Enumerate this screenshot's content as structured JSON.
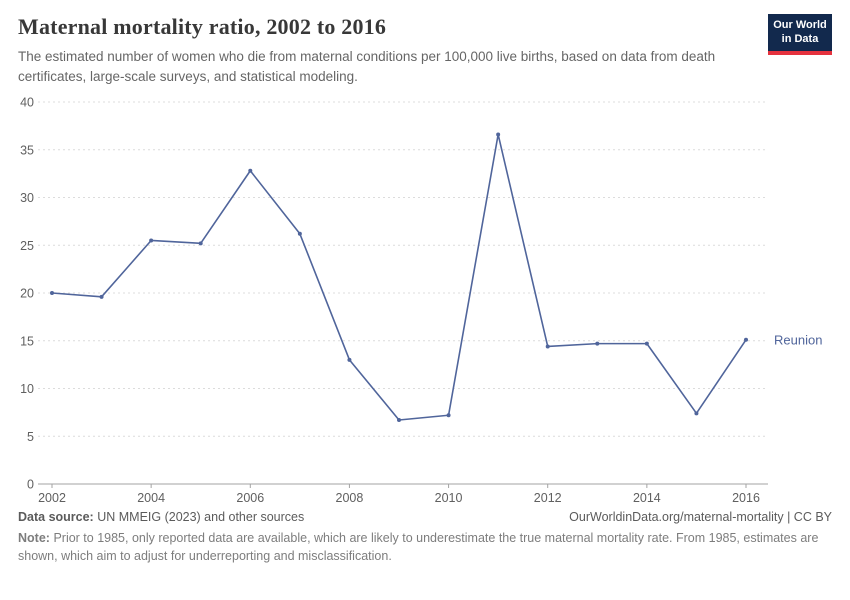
{
  "header": {
    "title": "Maternal mortality ratio, 2002 to 2016",
    "subtitle": "The estimated number of women who die from maternal conditions per 100,000 live births, based on data from death certificates, large-scale surveys, and statistical modeling.",
    "logo": {
      "line1": "Our World",
      "line2": "in Data"
    }
  },
  "colors": {
    "line_color": "#50659b",
    "logo_bg": "#12294d",
    "logo_accent": "#e5323e",
    "grid_color": "#dcdcdc",
    "axis_color": "#a3a3a3"
  },
  "chart_data": {
    "type": "line",
    "title": "Maternal mortality ratio, 2002 to 2016",
    "xlabel": "",
    "ylabel": "",
    "x": [
      2002,
      2003,
      2004,
      2005,
      2006,
      2007,
      2008,
      2009,
      2010,
      2011,
      2012,
      2013,
      2014,
      2015,
      2016
    ],
    "series": [
      {
        "name": "Reunion",
        "color": "#50659b",
        "values": [
          20.0,
          19.6,
          25.5,
          25.2,
          32.8,
          26.2,
          13.0,
          6.7,
          7.2,
          36.6,
          14.4,
          14.7,
          14.7,
          7.4,
          15.1
        ]
      }
    ],
    "ylim": [
      0,
      40
    ],
    "yticks": [
      0,
      5,
      10,
      15,
      20,
      25,
      30,
      35,
      40
    ],
    "xticks": [
      2002,
      2004,
      2006,
      2008,
      2010,
      2012,
      2014,
      2016
    ],
    "grid": "horizontal-dashed",
    "legend": "end-of-line-label",
    "end_label": "Reunion"
  },
  "footer": {
    "source_label": "Data source:",
    "source_text": "UN MMEIG (2023) and other sources",
    "url_text": "OurWorldinData.org/maternal-mortality | CC BY",
    "note_label": "Note:",
    "note_text": "Prior to 1985, only reported data are available, which are likely to underestimate the true maternal mortality rate. From 1985, estimates are shown, which aim to adjust for underreporting and misclassification."
  }
}
